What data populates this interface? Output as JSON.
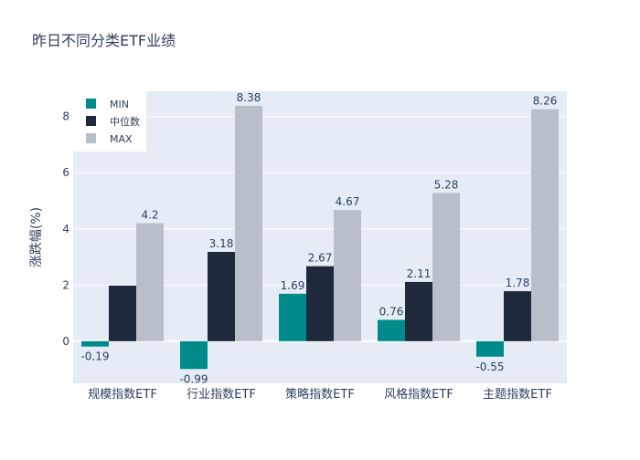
{
  "chart_data": {
    "type": "bar",
    "title": "昨日不同分类ETF业绩",
    "xlabel": "",
    "ylabel": "涨跌幅(%)",
    "categories": [
      "规模指数ETF",
      "行业指数ETF",
      "策略指数ETF",
      "风格指数ETF",
      "主题指数ETF"
    ],
    "series": [
      {
        "name": "MIN",
        "values": [
          -0.19,
          -0.99,
          1.69,
          0.76,
          -0.55
        ],
        "labels": [
          "-0.19",
          "-0.99",
          "1.69",
          "0.76",
          "-0.55"
        ],
        "color": "#008b8b"
      },
      {
        "name": "中位数",
        "values": [
          1.98,
          3.18,
          2.67,
          2.11,
          1.78
        ],
        "labels": [
          "",
          "3.18",
          "2.67",
          "2.11",
          "1.78"
        ],
        "color": "#1e293b"
      },
      {
        "name": "MAX",
        "values": [
          4.2,
          8.38,
          4.67,
          5.28,
          8.26
        ],
        "labels": [
          "4.2",
          "8.38",
          "4.67",
          "5.28",
          "8.26"
        ],
        "color": "#b8bfc8"
      }
    ],
    "ylim": [
      -1.5,
      8.9
    ],
    "yticks": [
      0,
      2,
      4,
      6,
      8
    ],
    "grid": true,
    "legend_position": "top-left",
    "plot_background": "#e5ecf6"
  }
}
